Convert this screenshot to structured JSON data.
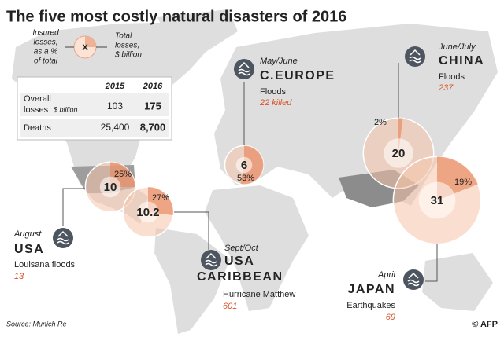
{
  "title": "The five most costly natural disasters of 2016",
  "legend": {
    "insured_lines": [
      "Insured",
      "losses,",
      "as a %",
      "of total"
    ],
    "symbol": "X",
    "total_lines": [
      "Total",
      "losses,",
      "$ billion"
    ]
  },
  "table": {
    "years": [
      "2015",
      "2016"
    ],
    "rows": [
      {
        "label_lines": [
          "Overall",
          "losses"
        ],
        "unit": "$ billion",
        "values": [
          "103",
          "175"
        ]
      },
      {
        "label_lines": [
          "Deaths"
        ],
        "values": [
          "25,400",
          "8,700"
        ]
      }
    ]
  },
  "disasters": [
    {
      "date": "August",
      "region": "USA",
      "event": "Louisana floods",
      "casualties": "13",
      "total_losses": 10,
      "insured_pct": 25,
      "insured_label": "25%"
    },
    {
      "date": "Sept/Oct",
      "region": "USA",
      "region2": "CARIBBEAN",
      "event": "Hurricane Matthew",
      "casualties": "601",
      "total_losses": 10.2,
      "insured_pct": 27,
      "insured_label": "27%"
    },
    {
      "date": "May/June",
      "region": "C.EUROPE",
      "event": "Floods",
      "casualties": "22 killed",
      "total_losses": 6,
      "insured_pct": 53,
      "insured_label": "53%"
    },
    {
      "date": "June/July",
      "region": "CHINA",
      "event": "Floods",
      "casualties": "237",
      "total_losses": 20,
      "insured_pct": 2,
      "insured_label": "2%"
    },
    {
      "date": "April",
      "region": "JAPAN",
      "event": "Earthquakes",
      "casualties": "69",
      "total_losses": 31,
      "insured_pct": 19,
      "insured_label": "19%"
    }
  ],
  "source": "Source: Munich Re",
  "credit": "© AFP"
}
